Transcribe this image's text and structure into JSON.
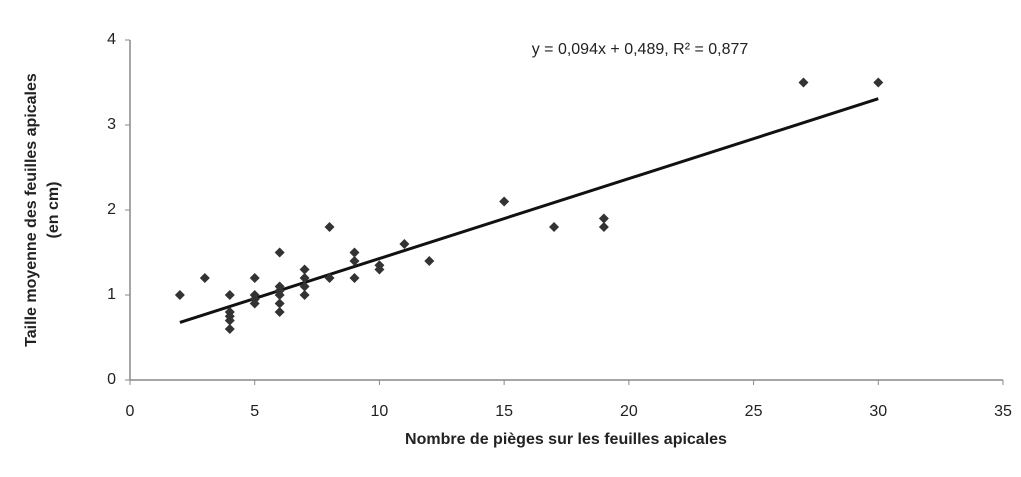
{
  "chart_data": {
    "type": "scatter",
    "xlabel": "Nombre de pièges sur les feuilles apicales",
    "ylabel": [
      "Taille moyenne des feuilles apicales",
      "(en cm)"
    ],
    "annotation": "y = 0,094x + 0,489, R² = 0,877",
    "x": [
      2,
      3,
      4,
      4,
      4,
      4,
      4,
      5,
      5,
      5,
      5,
      6,
      6,
      6,
      6,
      6,
      6,
      7,
      7,
      7,
      7,
      8,
      8,
      9,
      9,
      9,
      10,
      10,
      11,
      12,
      15,
      17,
      19,
      19,
      27,
      30
    ],
    "values": [
      1.0,
      1.2,
      1.0,
      0.8,
      0.75,
      0.7,
      0.6,
      1.2,
      1.0,
      0.95,
      0.9,
      1.5,
      1.1,
      1.05,
      1.0,
      0.9,
      0.8,
      1.3,
      1.2,
      1.1,
      1.0,
      1.8,
      1.2,
      1.5,
      1.4,
      1.2,
      1.35,
      1.3,
      1.6,
      1.4,
      2.1,
      1.8,
      1.9,
      1.8,
      3.5,
      3.5
    ],
    "color": "#333333",
    "trendline": {
      "slope": 0.094,
      "intercept": 0.489,
      "xrange": [
        2,
        30
      ],
      "color": "#111111"
    },
    "xlim": [
      0,
      35
    ],
    "xticks": [
      0,
      5,
      10,
      15,
      20,
      25,
      30,
      35
    ],
    "ylim": [
      0,
      4
    ],
    "yticks": [
      0,
      1,
      2,
      3,
      4
    ]
  }
}
